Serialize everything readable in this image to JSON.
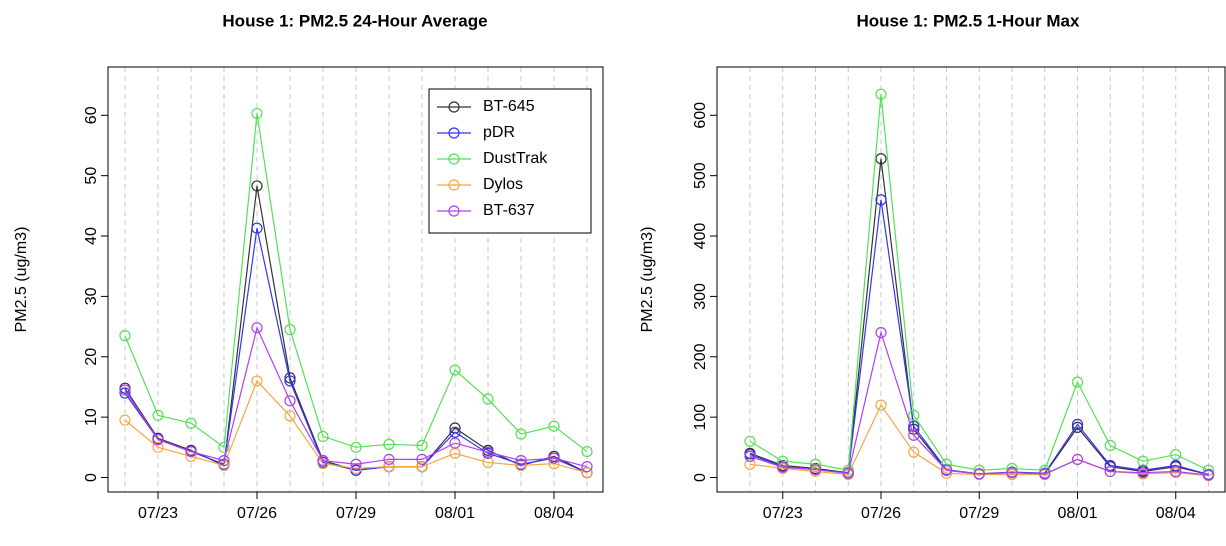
{
  "chart_data": [
    {
      "type": "line",
      "title": "House 1: PM2.5 24-Hour Average",
      "ylabel": "PM2.5 (ug/m3)",
      "categories": [
        null,
        "07/23",
        null,
        null,
        "07/26",
        null,
        null,
        "07/29",
        null,
        null,
        "08/01",
        null,
        null,
        "08/04",
        null
      ],
      "ylim": [
        -2.4,
        68
      ],
      "yticks": [
        0,
        10,
        20,
        30,
        40,
        50,
        60
      ],
      "grid": true,
      "legend": "topright",
      "series": [
        {
          "name": "BT-645",
          "color": "#333333",
          "values": [
            14.8,
            6.5,
            4.5,
            2.0,
            48.3,
            16.5,
            2.8,
            1.2,
            1.8,
            1.8,
            8.2,
            4.5,
            2.0,
            3.5,
            0.8
          ]
        },
        {
          "name": "pDR",
          "color": "#3333ff",
          "values": [
            14.0,
            6.3,
            4.3,
            2.2,
            41.3,
            16.0,
            2.5,
            1.2,
            1.8,
            1.8,
            7.5,
            4.0,
            2.2,
            3.2,
            0.8
          ]
        },
        {
          "name": "DustTrak",
          "color": "#55e055",
          "values": [
            23.5,
            10.3,
            9.0,
            5.0,
            60.3,
            24.5,
            6.8,
            5.0,
            5.5,
            5.3,
            17.8,
            13.0,
            7.2,
            8.5,
            4.3
          ]
        },
        {
          "name": "Dylos",
          "color": "#f5a742",
          "values": [
            9.5,
            5.0,
            3.5,
            2.0,
            16.0,
            10.2,
            2.3,
            1.5,
            1.8,
            1.8,
            4.0,
            2.5,
            2.0,
            2.3,
            0.8
          ]
        },
        {
          "name": "BT-637",
          "color": "#b040f0",
          "values": [
            14.5,
            6.3,
            4.3,
            2.8,
            24.8,
            12.7,
            2.8,
            2.2,
            3.0,
            3.0,
            5.7,
            4.2,
            2.8,
            3.2,
            1.8
          ]
        }
      ]
    },
    {
      "type": "line",
      "title": "House 1: PM2.5 1-Hour Max",
      "ylabel": "PM2.5 (ug/m3)",
      "categories": [
        null,
        "07/23",
        null,
        null,
        "07/26",
        null,
        null,
        "07/29",
        null,
        null,
        "08/01",
        null,
        null,
        "08/04",
        null
      ],
      "ylim": [
        -24,
        680
      ],
      "yticks": [
        0,
        100,
        200,
        300,
        400,
        500,
        600
      ],
      "grid": true,
      "legend": false,
      "series": [
        {
          "color": "#333333",
          "values": [
            40,
            20,
            15,
            8,
            528,
            80,
            12,
            6,
            8,
            6,
            83,
            18,
            10,
            18,
            5
          ]
        },
        {
          "color": "#3333ff",
          "values": [
            38,
            18,
            13,
            8,
            460,
            85,
            13,
            6,
            9,
            7,
            88,
            20,
            12,
            20,
            5
          ]
        },
        {
          "color": "#55e055",
          "values": [
            60,
            27,
            22,
            12,
            635,
            103,
            22,
            12,
            15,
            12,
            158,
            53,
            27,
            38,
            12
          ]
        },
        {
          "color": "#f5a742",
          "values": [
            22,
            15,
            10,
            5,
            120,
            42,
            7,
            5,
            5,
            5,
            30,
            10,
            6,
            8,
            3
          ]
        },
        {
          "color": "#b040f0",
          "values": [
            35,
            17,
            13,
            7,
            240,
            70,
            12,
            6,
            8,
            6,
            30,
            10,
            8,
            10,
            4
          ]
        }
      ]
    }
  ]
}
